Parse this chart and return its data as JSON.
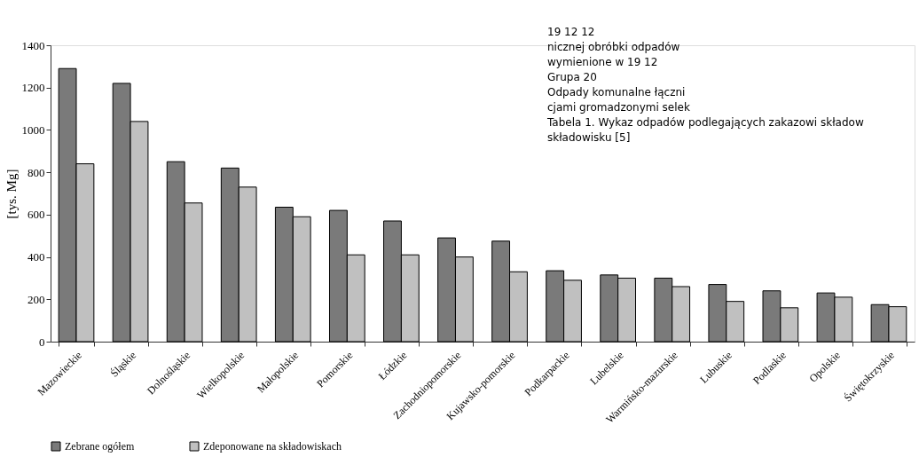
{
  "chart_data": {
    "type": "bar",
    "ylabel": "[tys. Mg]",
    "categories": [
      "Mazowieckie",
      "Śląskie",
      "Dolnośląskie",
      "Wielkopolskie",
      "Małopolskie",
      "Pomorskie",
      "Łódzkie",
      "Zachodniopomorskie",
      "Kujawsko-pomorskie",
      "Podkarpackie",
      "Lubelskie",
      "Warmińsko-mazurskie",
      "Lubuskie",
      "Podlaskie",
      "Opolskie",
      "Świętokrzyskie"
    ],
    "series": [
      {
        "name": "Zebrane ogółem",
        "color": "#7a7a7a",
        "values": [
          1290,
          1220,
          850,
          820,
          635,
          620,
          570,
          490,
          475,
          335,
          315,
          300,
          270,
          240,
          230,
          175
        ]
      },
      {
        "name": "Zdeponowane na składowiskach",
        "color": "#c0c0c0",
        "values": [
          840,
          1040,
          655,
          730,
          590,
          410,
          410,
          400,
          330,
          290,
          300,
          260,
          190,
          160,
          210,
          165
        ]
      }
    ],
    "ylim": [
      0,
      1400
    ],
    "yticks": [
      0,
      200,
      400,
      600,
      800,
      1000,
      1200,
      1400
    ],
    "grid": false,
    "legend": "bottom",
    "annotations": [
      "19 12 12",
      "nicznej obróbki odpadów",
      "wymienione w 19 12",
      "Grupa 20",
      "Odpady komunalne łączni",
      "cjami gromadzonymi selek",
      "Tabela 1. Wykaz odpadów podlegających zakazowi składow",
      "składowisku [5]"
    ]
  }
}
